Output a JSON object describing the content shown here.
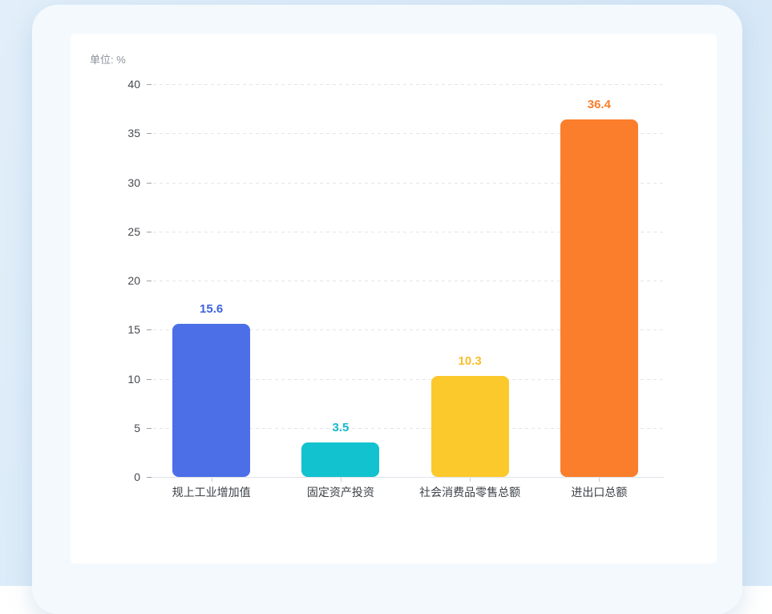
{
  "unit_label": "单位: %",
  "colors": {
    "page_bg": "#D9EAF8",
    "panel_bg": "#F4F9FD",
    "card_bg": "#FFFFFF",
    "grid_line": "#E2E5EA",
    "axis_line": "#DFE3E8",
    "axis_tick": "#9BA1A8",
    "y_label": "#46494E",
    "category_label": "#3C4046",
    "unit_label": "#8C919B"
  },
  "chart_data": {
    "type": "bar",
    "title": "",
    "unit_label": "单位: %",
    "categories": [
      "规上工业增加值",
      "固定资产投资",
      "社会消费品零售总额",
      "进出口总额"
    ],
    "values": [
      15.6,
      3.5,
      10.3,
      36.4
    ],
    "value_labels": [
      "15.6",
      "3.5",
      "10.3",
      "36.4"
    ],
    "bar_colors": [
      "#4C6FE8",
      "#12C2CE",
      "#FCC92D",
      "#FA7E2C"
    ],
    "value_label_colors": [
      "#3D63E0",
      "#14B8CA",
      "#F8BE29",
      "#F97E2B"
    ],
    "xlabel": "",
    "ylabel": "",
    "ylim": [
      0,
      40
    ],
    "yticks": [
      0,
      5,
      10,
      15,
      20,
      25,
      30,
      35,
      40
    ],
    "grid": "horizontal-dashed",
    "legend": "none"
  }
}
